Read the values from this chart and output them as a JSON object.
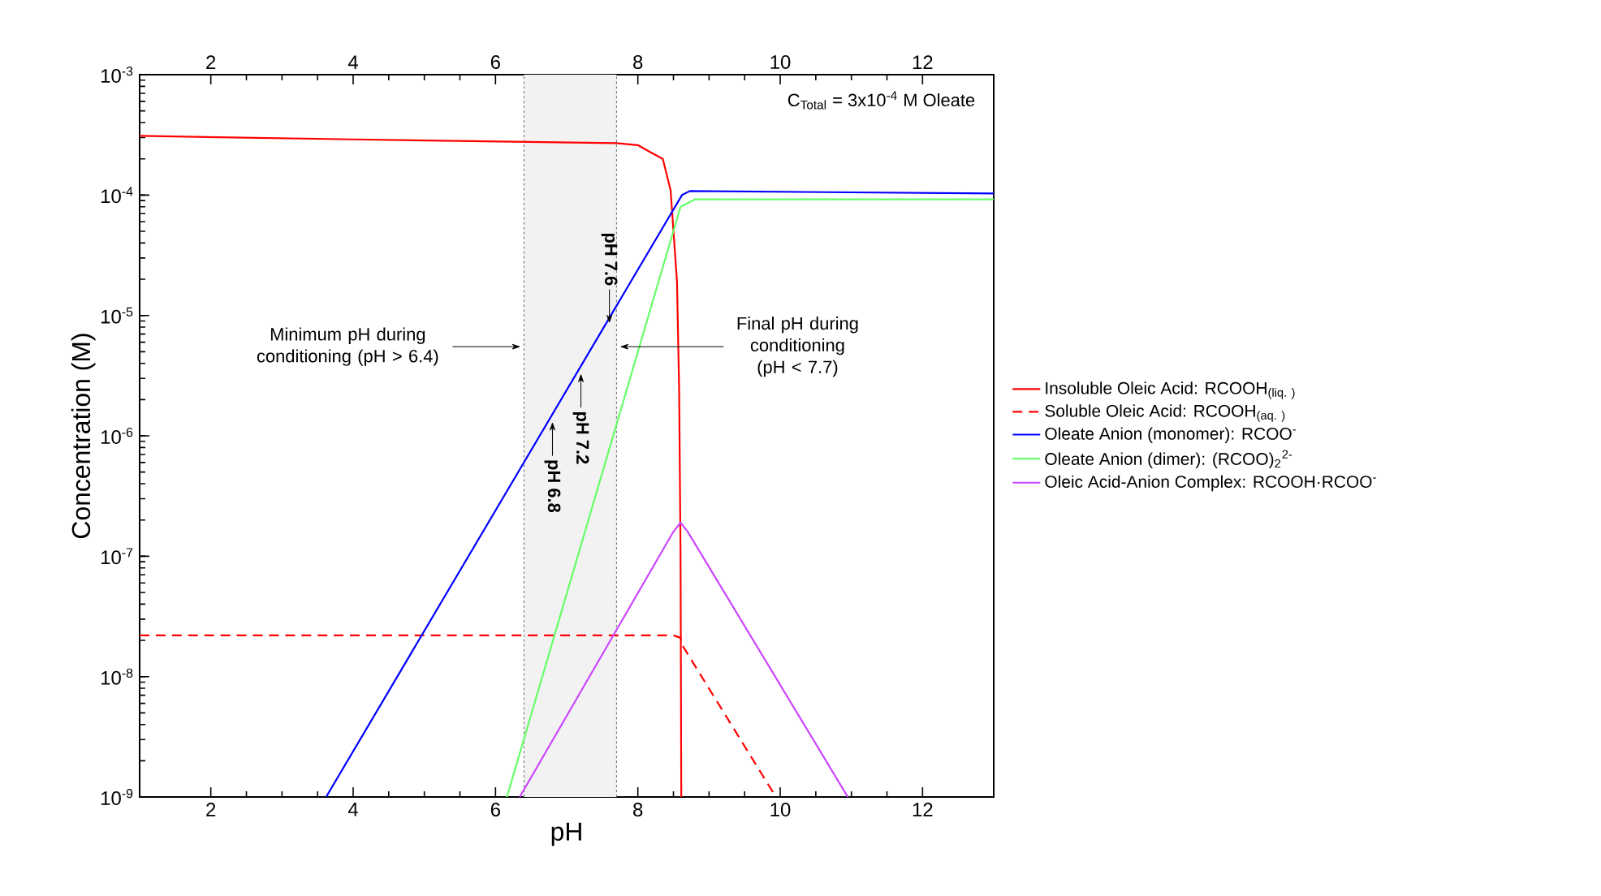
{
  "chart_data": {
    "type": "line",
    "xlabel": "pH",
    "ylabel": "Concentration (M)",
    "log": "y",
    "xlim": [
      1,
      13
    ],
    "xticks": [
      2,
      4,
      6,
      8,
      10,
      12
    ],
    "x2lim": [
      1,
      13
    ],
    "x2ticks": [
      2,
      4,
      6,
      8,
      10,
      12
    ],
    "ylim": [
      1e-09,
      0.001
    ],
    "yticks": [
      {
        "value": 1e-09,
        "label": "10$^{-9}$"
      },
      {
        "value": 1e-08,
        "label": "10$^{-8}$"
      },
      {
        "value": 1e-07,
        "label": "10$^{-7}$"
      },
      {
        "value": 1e-06,
        "label": "10$^{-6}$"
      },
      {
        "value": 1e-05,
        "label": "10$^{-5}$"
      },
      {
        "value": 0.0001,
        "label": "10$^{-4}$"
      },
      {
        "value": 0.001,
        "label": "10$^{-3}$"
      }
    ],
    "legend": "right",
    "series": [
      {
        "name": "Insoluble Oleic Acid: RCOOH$_{(liq. )}$",
        "color": "#ff0000",
        "x": [
          1,
          4,
          7.7,
          8.0,
          8.16,
          8.35,
          8.46,
          8.55,
          8.58,
          8.6,
          8.61
        ],
        "values": [
          0.00031,
          0.00029,
          0.00027,
          0.00026,
          0.00023,
          0.0002,
          0.00011,
          1.9e-05,
          2.4e-06,
          1e-07,
          1e-09
        ]
      },
      {
        "name": "Soluble Oleic Acid: RCOOH$_{(aq. )}$",
        "color": "#ff0000",
        "line_style": "dashed",
        "x": [
          1,
          8.5,
          8.6,
          8.63,
          9.94
        ],
        "values": [
          2.2e-08,
          2.2e-08,
          2.1e-08,
          1.8e-08,
          1e-09
        ]
      },
      {
        "name": "Oleate Anion (monomer): RCOO$^{-}$",
        "color": "#0000ff",
        "x": [
          3.62,
          8.62,
          8.73,
          13
        ],
        "values": [
          1e-09,
          0.0001,
          0.000108,
          0.000103
        ]
      },
      {
        "name": "Oleate Anion (dimer): (RCOO)$_{2}$$^{2-}$",
        "color": "#66ff66",
        "x": [
          6.16,
          8.6,
          8.8,
          13
        ],
        "values": [
          1e-09,
          8e-05,
          9.2e-05,
          9.2e-05
        ]
      },
      {
        "name": "Oleic Acid-Anion Complex: RCOOH·RCOO$^{-}$",
        "color": "#cc44ff",
        "x": [
          6.34,
          8.5,
          8.6,
          8.7,
          10.95
        ],
        "values": [
          1e-09,
          1.6e-07,
          1.9e-07,
          1.6e-07,
          1e-09
        ]
      }
    ],
    "bands": [
      {
        "axis": "x",
        "from": 6.4,
        "to": 7.7,
        "color": "#f2f2f2"
      }
    ],
    "ref_lines": [
      {
        "axis": "x",
        "value": 6.4,
        "color": "#666666",
        "line_style": "dashed"
      },
      {
        "axis": "x",
        "value": 7.7,
        "color": "#666666",
        "line_style": "dashed"
      }
    ],
    "annotations": [
      "C$_{Total}$ = 3x10$^{-4}$ M Oleate",
      {
        "text": "Minimum pH during conditioning (pH > 6.4)",
        "x": 6.4,
        "y": 5.5e-06
      },
      {
        "text": "Final pH during conditioning (pH < 7.7)",
        "x": 7.7,
        "y": 5.5e-06
      },
      {
        "text": "pH 7.6",
        "x": 7.6,
        "y": 8.3e-06
      },
      {
        "text": "pH 7.2",
        "x": 7.2,
        "y": 3.4e-06
      },
      {
        "text": "pH 6.8",
        "x": 6.8,
        "y": 1.35e-06
      }
    ]
  }
}
